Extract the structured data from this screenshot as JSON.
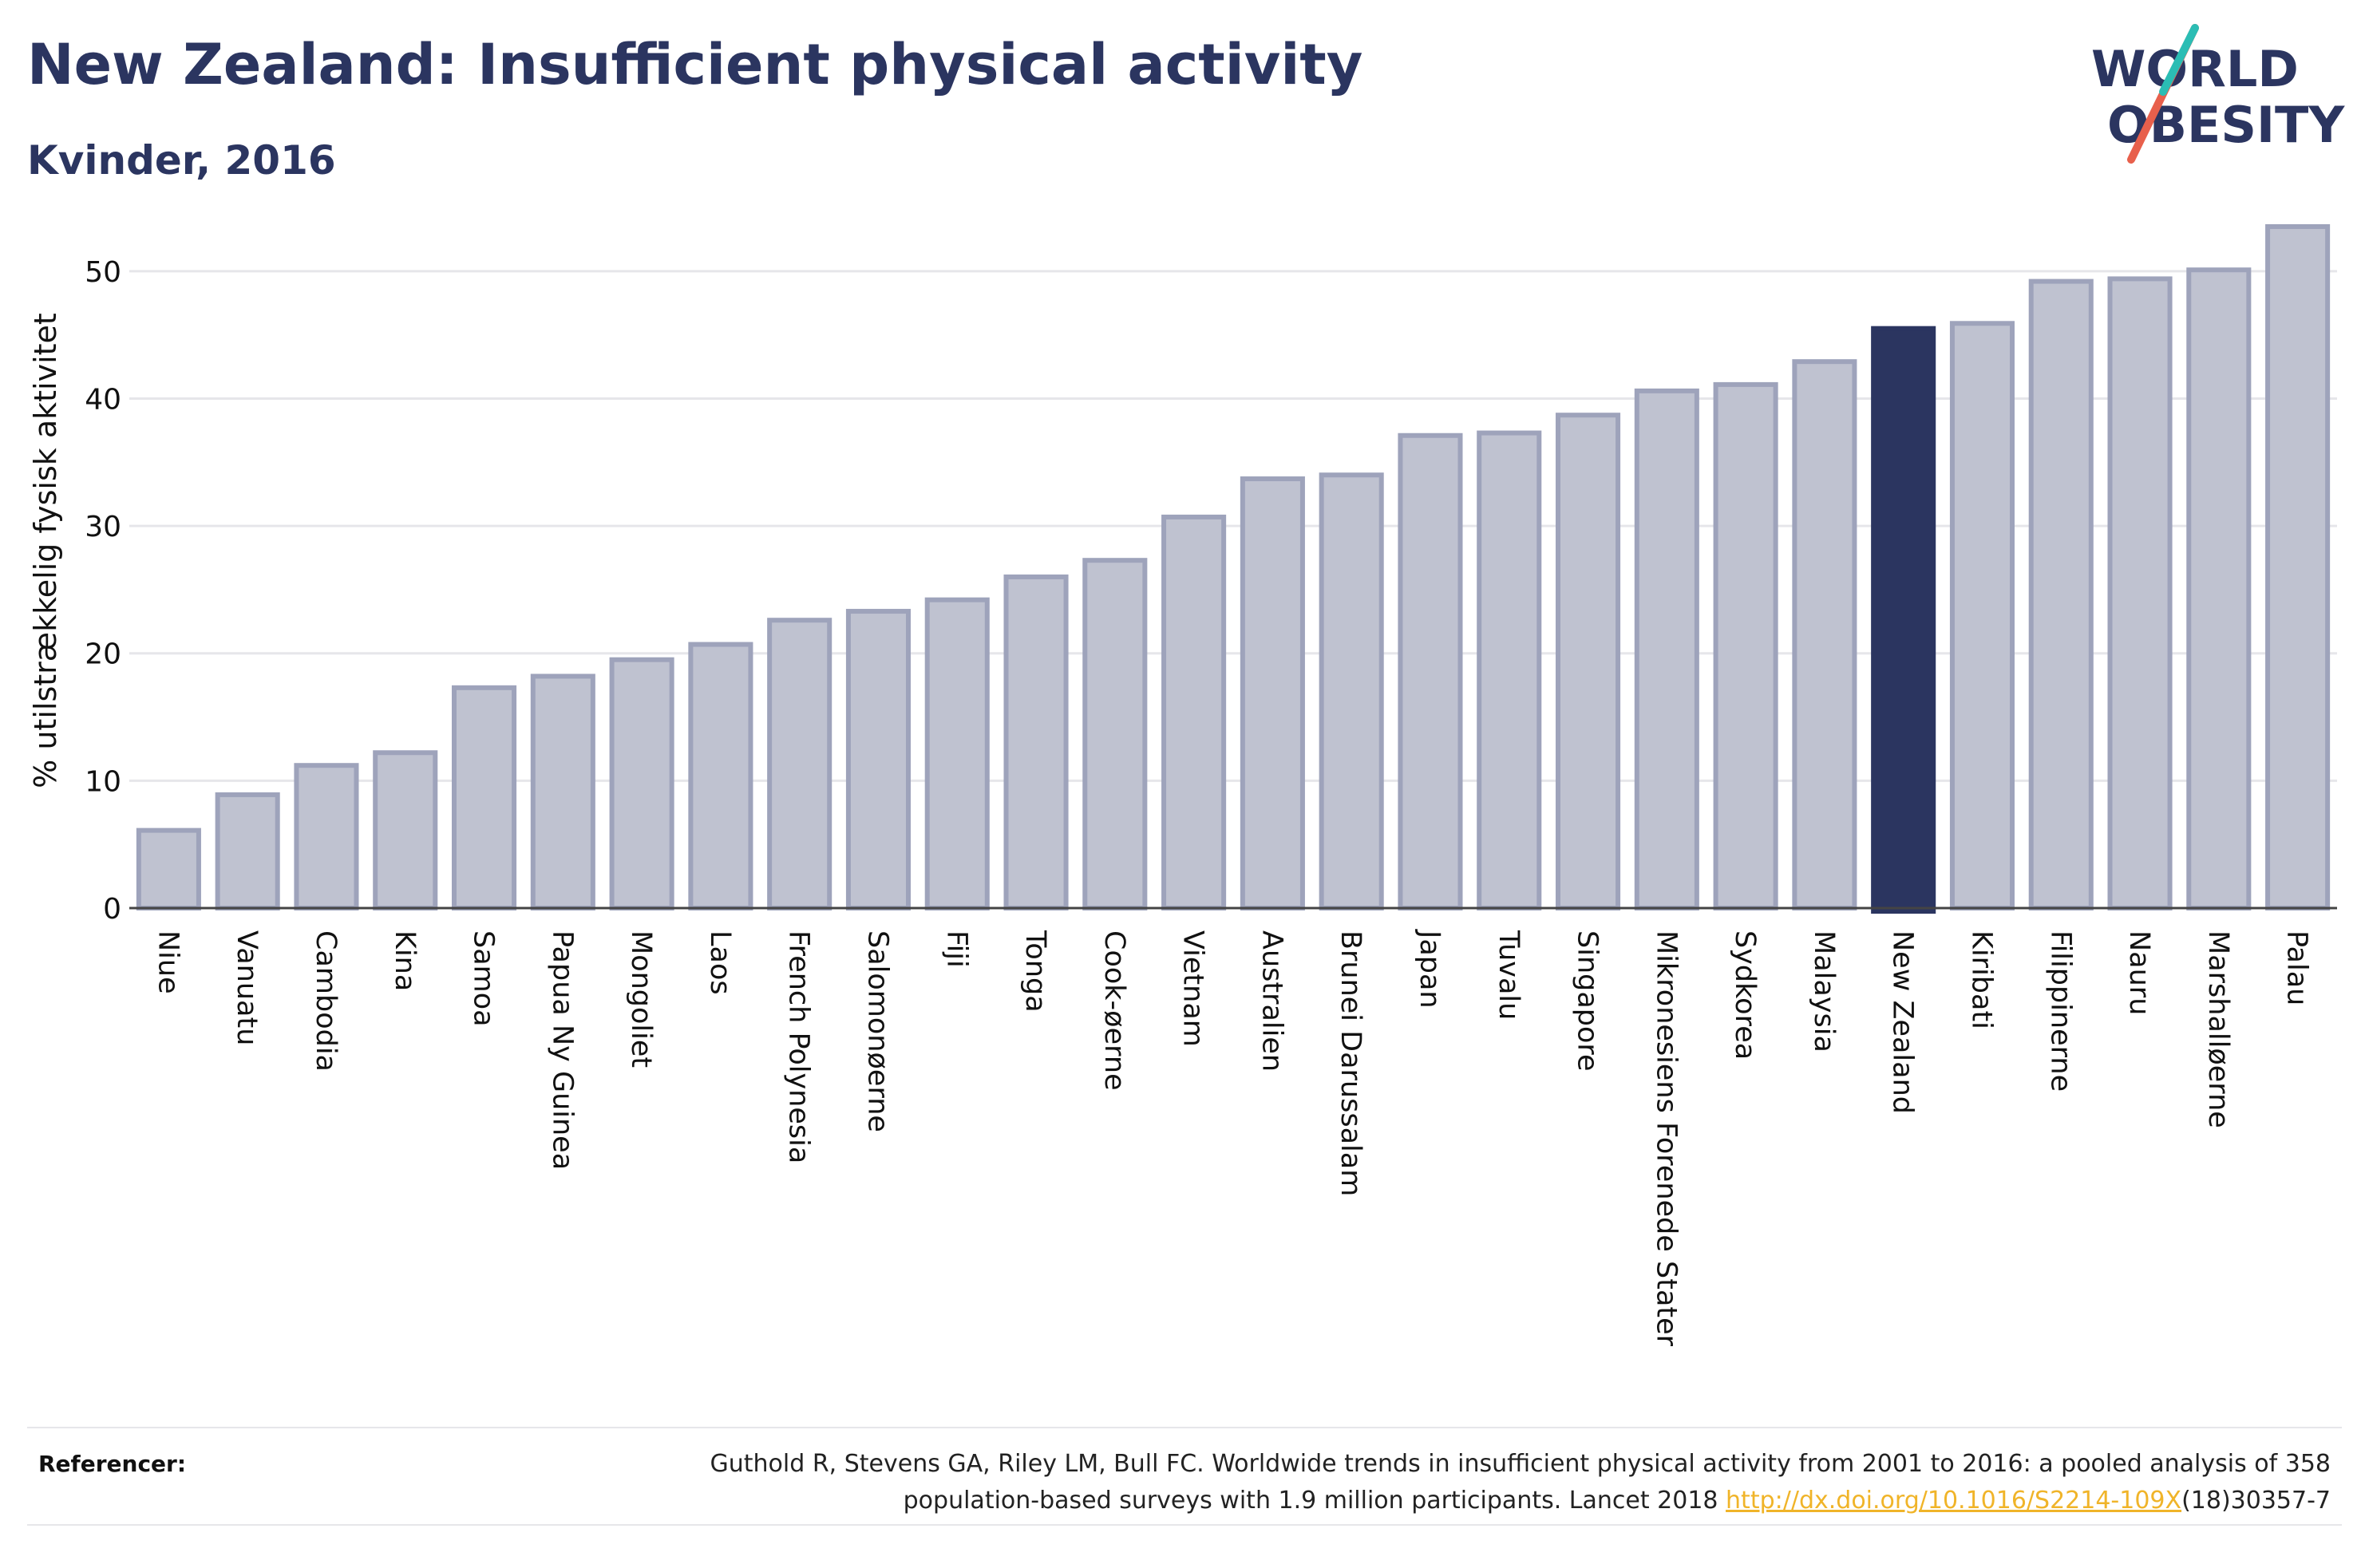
{
  "header": {
    "title": "New Zealand: Insufficient physical activity",
    "subtitle": "Kvinder, 2016"
  },
  "logo": {
    "line1": "WORLD",
    "line2": "OBESITY"
  },
  "colors": {
    "bar": "#bfc2d0",
    "bar_edge": "#9ea3bb",
    "highlight": "#2b3560",
    "grid": "#e6e6ea",
    "accent_teal": "#2bbdb4",
    "accent_red": "#e8604c"
  },
  "chart_data": {
    "type": "bar",
    "title": "New Zealand: Insufficient physical activity",
    "subtitle": "Kvinder, 2016",
    "xlabel": "",
    "ylabel": "% utilstrækkelig fysisk aktivitet",
    "ylim": [
      0,
      55
    ],
    "yticks": [
      0,
      10,
      20,
      30,
      40,
      50
    ],
    "grid": true,
    "highlight": "New Zealand",
    "categories": [
      "Niue",
      "Vanuatu",
      "Cambodia",
      "Kina",
      "Samoa",
      "Papua Ny Guinea",
      "Mongoliet",
      "Laos",
      "French Polynesia",
      "Salomonøerne",
      "Fiji",
      "Tonga",
      "Cook-øerne",
      "Vietnam",
      "Australien",
      "Brunei Darussalam",
      "Japan",
      "Tuvalu",
      "Singapore",
      "Mikronesiens Forenede Stater",
      "Sydkorea",
      "Malaysia",
      "New Zealand",
      "Kiribati",
      "Filippinerne",
      "Nauru",
      "Marshalløerne",
      "Palau"
    ],
    "values": [
      6.1,
      8.9,
      11.2,
      12.2,
      17.3,
      18.2,
      19.5,
      20.7,
      22.6,
      23.3,
      24.2,
      26.0,
      27.3,
      30.7,
      33.7,
      34.0,
      37.1,
      37.3,
      38.7,
      40.6,
      41.1,
      42.9,
      45.5,
      45.9,
      49.2,
      49.4,
      50.1,
      53.5
    ]
  },
  "references": {
    "label": "Referencer:",
    "text_line1": "Guthold R, Stevens GA, Riley LM, Bull FC. Worldwide trends in insufficient physical activity from 2001 to 2016: a pooled analysis of 358",
    "text_line2_pre": "population-based surveys with 1.9 million participants. Lancet 2018 ",
    "link": "http://dx.doi.org/10.1016/S2214-109X",
    "text_line2_post": "(18)30357-7"
  }
}
